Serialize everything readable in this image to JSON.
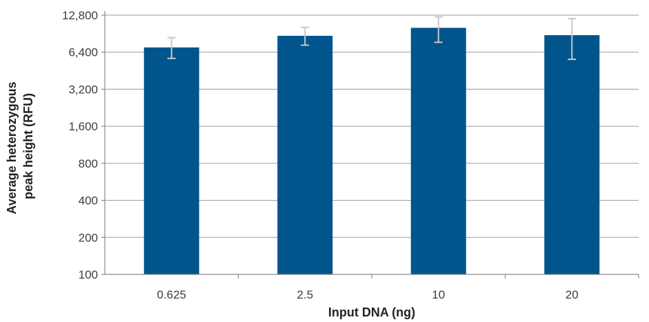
{
  "chart_data": {
    "type": "bar",
    "yscale": "log2",
    "categories": [
      "0.625",
      "2.5",
      "10",
      "20"
    ],
    "values": [
      7000,
      8700,
      10100,
      8800
    ],
    "error_low": [
      5700,
      7300,
      7700,
      5600
    ],
    "error_high": [
      8400,
      10200,
      12400,
      12000
    ],
    "ylim": [
      100,
      12800
    ],
    "yticks": [
      100,
      200,
      400,
      800,
      1600,
      3200,
      6400,
      12800
    ],
    "ytick_labels": [
      "100",
      "200",
      "400",
      "800",
      "1,600",
      "3,200",
      "6,400",
      "12,800"
    ],
    "xlabel": "Input DNA (ng)",
    "ylabel_lines": [
      "Average heterozygous",
      "peak height (RFU)"
    ],
    "grid": "horizontal",
    "bar_color": "#00558c",
    "error_bar_color": "#c8c8c8"
  }
}
